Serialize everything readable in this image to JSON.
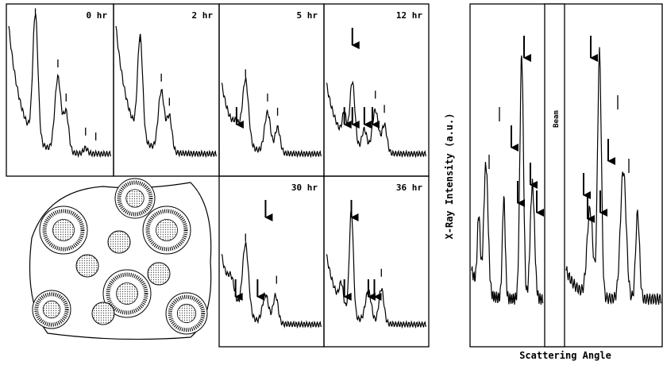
{
  "panels": [
    {
      "label": "0 hr"
    },
    {
      "label": "2 hr"
    },
    {
      "label": "5 hr"
    },
    {
      "label": "12 hr"
    },
    {
      "label": "30 hr"
    },
    {
      "label": "36 hr"
    }
  ],
  "right_panel": {
    "y_axis_label": "X-Ray Intensity (a.u.)",
    "beam_label": "Beam",
    "x_axis_label": "Scattering Angle"
  }
}
